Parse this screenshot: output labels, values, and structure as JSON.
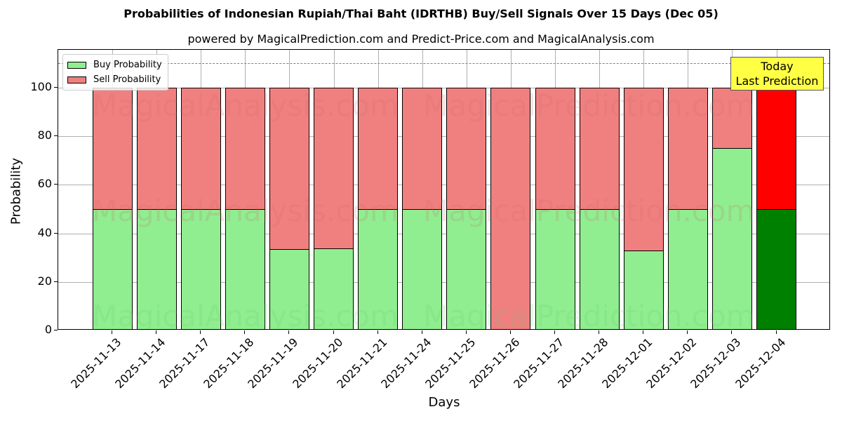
{
  "title": "Probabilities of Indonesian Rupiah/Thai Baht (IDRTHB) Buy/Sell Signals Over 15 Days (Dec 05)",
  "subtitle": "powered by MagicalPrediction.com and Predict-Price.com and MagicalAnalysis.com",
  "legend": {
    "buy_label": "Buy Probability",
    "sell_label": "Sell Probability"
  },
  "annotation": {
    "line1": "Today",
    "line2": "Last Prediction"
  },
  "watermarks": [
    "MagicalAnalysis.com",
    "MagicalPrediction.com"
  ],
  "colors": {
    "buy": "#90ee90",
    "sell": "#f08080",
    "today_buy": "#008000",
    "today_sell": "#ff0000",
    "annotation_bg": "#ffff44",
    "ref_line": "#808080"
  },
  "chart_data": {
    "type": "bar",
    "stacked": true,
    "title": "Probabilities of Indonesian Rupiah/Thai Baht (IDRTHB) Buy/Sell Signals Over 15 Days (Dec 05)",
    "subtitle": "powered by MagicalPrediction.com and Predict-Price.com and MagicalAnalysis.com",
    "xlabel": "Days",
    "ylabel": "Probability",
    "ylim": [
      0,
      115
    ],
    "yticks": [
      0,
      20,
      40,
      60,
      80,
      100
    ],
    "grid": true,
    "legend_position": "upper left",
    "reference_line": {
      "y": 110,
      "style": "dashed",
      "color": "#808080"
    },
    "categories": [
      "2025-11-13",
      "2025-11-14",
      "2025-11-17",
      "2025-11-18",
      "2025-11-19",
      "2025-11-20",
      "2025-11-21",
      "2025-11-24",
      "2025-11-25",
      "2025-11-26",
      "2025-11-27",
      "2025-11-28",
      "2025-12-01",
      "2025-12-02",
      "2025-12-03",
      "2025-12-04"
    ],
    "series": [
      {
        "name": "Buy Probability",
        "values": [
          50,
          50,
          50,
          50,
          33.5,
          33.8,
          50,
          50,
          50,
          0,
          50,
          50,
          32.9,
          50,
          75.1,
          50
        ]
      },
      {
        "name": "Sell Probability",
        "values": [
          50,
          50,
          50,
          50,
          66.5,
          66.2,
          50,
          50,
          50,
          100,
          50,
          50,
          67.1,
          50,
          24.9,
          50
        ]
      }
    ],
    "annotations": [
      {
        "text": "Today\nLast Prediction",
        "x": "2025-12-04",
        "y": 105
      }
    ]
  }
}
